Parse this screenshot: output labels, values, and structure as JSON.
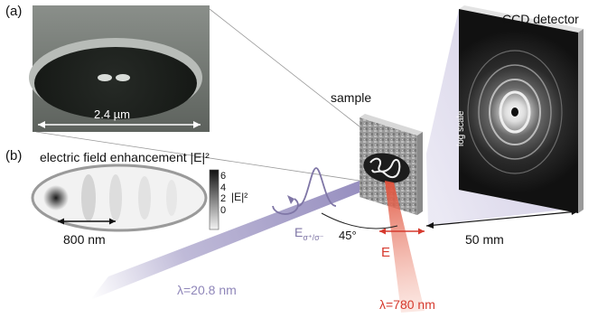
{
  "panel_a": {
    "tag": "(a)",
    "scale_label": "2.4 µm"
  },
  "panel_b": {
    "tag": "(b)",
    "title": "electric field enhancement |E|²",
    "colorbar_ticks": [
      "6",
      "4",
      "2",
      "0"
    ],
    "colorbar_label": "|E|²",
    "scale_label": "800 nm"
  },
  "setup": {
    "sample_label": "sample",
    "detector_label": "CCD detector",
    "detector_scale": "log scale",
    "distance_label": "50 mm",
    "angle_label": "45°",
    "polarization_label": "E",
    "polarization_sub": "σ⁺/σ⁻",
    "ir_field_label": "E",
    "xuv_wavelength": "λ=20.8 nm",
    "ir_wavelength": "λ=780 nm"
  },
  "colors": {
    "xuv_beam": "#8b82b8",
    "ir_beam": "#e0503a",
    "detector_fan": "#d8d4ea"
  }
}
